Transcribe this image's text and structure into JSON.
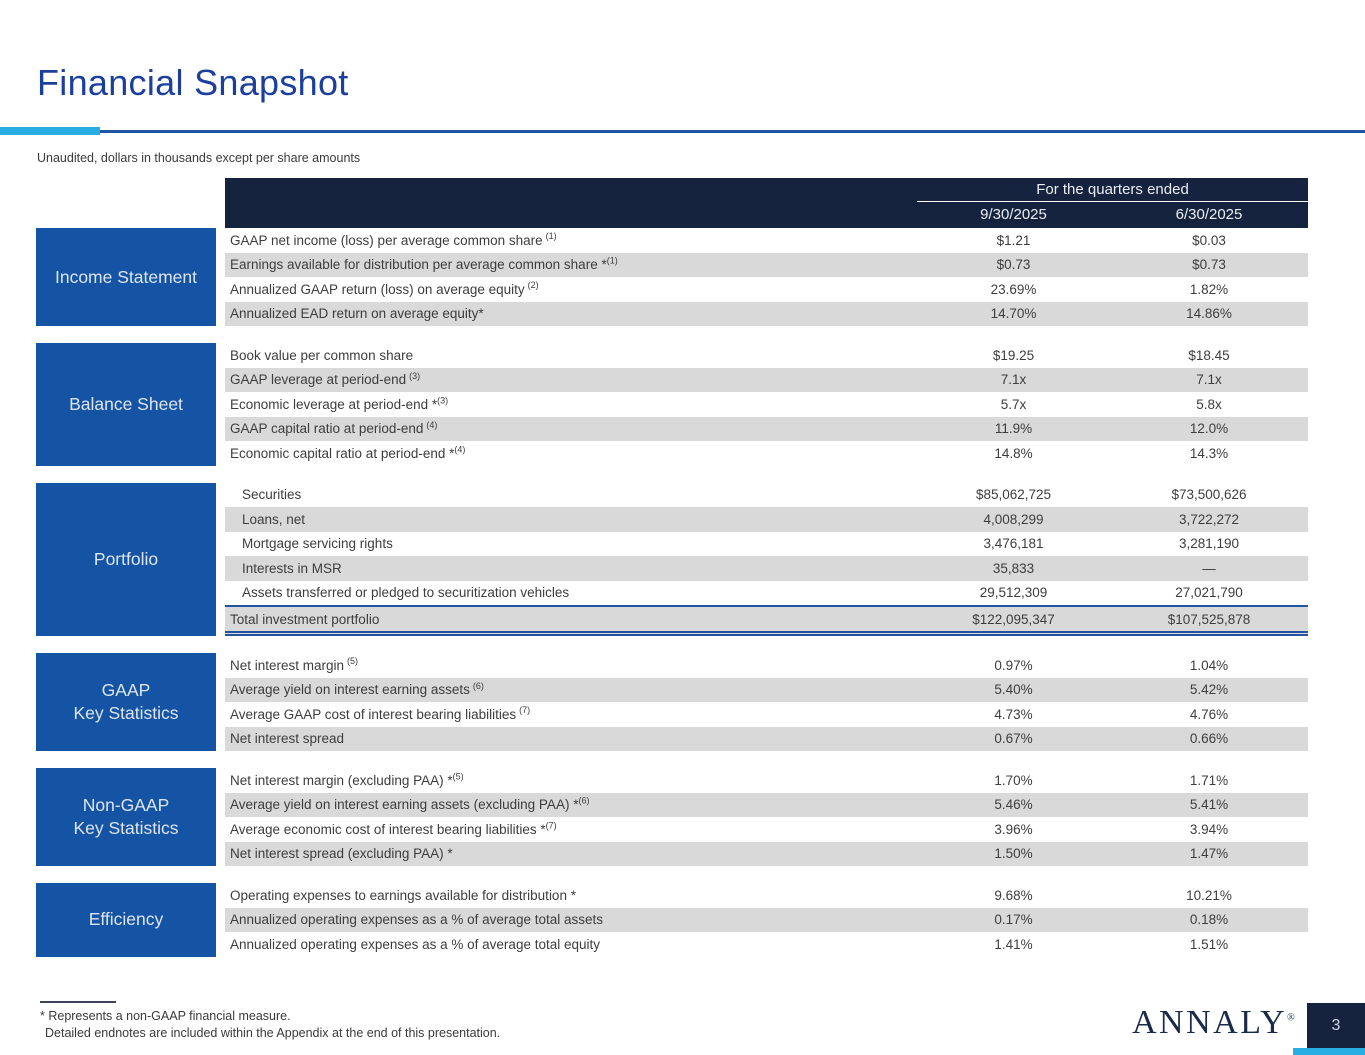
{
  "colors": {
    "accent-cyan": "#29AEE4",
    "navy": "#16233F",
    "section-blue": "#1553A4",
    "row-gray": "#D9D9D9",
    "title-blue": "#1C3F9D",
    "border-blue": "#2155A4",
    "logo-navy": "#1A2B49"
  },
  "page": {
    "title": "Financial Snapshot",
    "subtitle": "Unaudited, dollars in thousands except per share amounts",
    "page_number": "3",
    "logo_text": "ANNALY",
    "logo_mark": "®"
  },
  "footnotes": {
    "line1": "* Represents a non-GAAP financial measure.",
    "line2": "Detailed endnotes are included within the Appendix at the end of this presentation."
  },
  "table": {
    "header": {
      "group_label": "For the quarters ended",
      "columns": [
        "9/30/2025",
        "6/30/2025"
      ]
    },
    "sections": [
      {
        "name": "Income Statement",
        "rows": [
          {
            "label": "GAAP net income (loss) per average common share",
            "sup": "(1)",
            "values": [
              "$1.21",
              "$0.03"
            ],
            "shaded": false
          },
          {
            "label": "Earnings available for distribution per average common share *",
            "sup": "(1)",
            "values": [
              "$0.73",
              "$0.73"
            ],
            "shaded": true
          },
          {
            "label": "Annualized GAAP return (loss) on average equity",
            "sup": "(2)",
            "values": [
              "23.69%",
              "1.82%"
            ],
            "shaded": false
          },
          {
            "label": "Annualized EAD return on average equity*",
            "sup": "",
            "values": [
              "14.70%",
              "14.86%"
            ],
            "shaded": true
          }
        ]
      },
      {
        "name": "Balance Sheet",
        "rows": [
          {
            "label": "Book value per common share",
            "sup": "",
            "values": [
              "$19.25",
              "$18.45"
            ],
            "shaded": false
          },
          {
            "label": "GAAP leverage at period-end",
            "sup": "(3)",
            "values": [
              "7.1x",
              "7.1x"
            ],
            "shaded": true
          },
          {
            "label": "Economic leverage at period-end *",
            "sup": "(3)",
            "values": [
              "5.7x",
              "5.8x"
            ],
            "shaded": false
          },
          {
            "label": "GAAP capital ratio at period-end",
            "sup": "(4)",
            "values": [
              "11.9%",
              "12.0%"
            ],
            "shaded": true
          },
          {
            "label": "Economic capital ratio at period-end *",
            "sup": "(4)",
            "values": [
              "14.8%",
              "14.3%"
            ],
            "shaded": false
          }
        ]
      },
      {
        "name": "Portfolio",
        "rows": [
          {
            "label": "Securities",
            "sup": "",
            "values": [
              "$85,062,725",
              "$73,500,626"
            ],
            "shaded": false,
            "indent": true
          },
          {
            "label": "Loans, net",
            "sup": "",
            "values": [
              "4,008,299",
              "3,722,272"
            ],
            "shaded": true,
            "indent": true
          },
          {
            "label": "Mortgage servicing rights",
            "sup": "",
            "values": [
              "3,476,181",
              "3,281,190"
            ],
            "shaded": false,
            "indent": true
          },
          {
            "label": "Interests in MSR",
            "sup": "",
            "values": [
              "35,833",
              "—"
            ],
            "shaded": true,
            "indent": true
          },
          {
            "label": "Assets transferred or pledged to securitization vehicles",
            "sup": "",
            "values": [
              "29,512,309",
              "27,021,790"
            ],
            "shaded": false,
            "indent": true
          },
          {
            "label": "Total investment portfolio",
            "sup": "",
            "values": [
              "$122,095,347",
              "$107,525,878"
            ],
            "shaded": true,
            "total": true
          }
        ]
      },
      {
        "name": "GAAP\nKey Statistics",
        "rows": [
          {
            "label": "Net interest margin",
            "sup": "(5)",
            "values": [
              "0.97%",
              "1.04%"
            ],
            "shaded": false
          },
          {
            "label": "Average yield on interest earning assets",
            "sup": "(6)",
            "values": [
              "5.40%",
              "5.42%"
            ],
            "shaded": true
          },
          {
            "label": "Average GAAP cost of interest bearing liabilities",
            "sup": "(7)",
            "values": [
              "4.73%",
              "4.76%"
            ],
            "shaded": false
          },
          {
            "label": "Net interest spread",
            "sup": "",
            "values": [
              "0.67%",
              "0.66%"
            ],
            "shaded": true
          }
        ]
      },
      {
        "name": "Non-GAAP\nKey Statistics",
        "rows": [
          {
            "label": "Net interest margin (excluding PAA) *",
            "sup": "(5)",
            "values": [
              "1.70%",
              "1.71%"
            ],
            "shaded": false
          },
          {
            "label": "Average yield on interest earning assets (excluding PAA) *",
            "sup": "(6)",
            "values": [
              "5.46%",
              "5.41%"
            ],
            "shaded": true
          },
          {
            "label": "Average economic cost of interest bearing liabilities *",
            "sup": "(7)",
            "values": [
              "3.96%",
              "3.94%"
            ],
            "shaded": false
          },
          {
            "label": "Net interest spread (excluding PAA) *",
            "sup": "",
            "values": [
              "1.50%",
              "1.47%"
            ],
            "shaded": true
          }
        ]
      },
      {
        "name": "Efficiency",
        "rows": [
          {
            "label": "Operating expenses to earnings available for distribution *",
            "sup": "",
            "values": [
              "9.68%",
              "10.21%"
            ],
            "shaded": false
          },
          {
            "label": "Annualized operating expenses as a % of average total assets",
            "sup": "",
            "values": [
              "0.17%",
              "0.18%"
            ],
            "shaded": true
          },
          {
            "label": "Annualized operating expenses as a % of average total equity",
            "sup": "",
            "values": [
              "1.41%",
              "1.51%"
            ],
            "shaded": false
          }
        ]
      }
    ]
  }
}
